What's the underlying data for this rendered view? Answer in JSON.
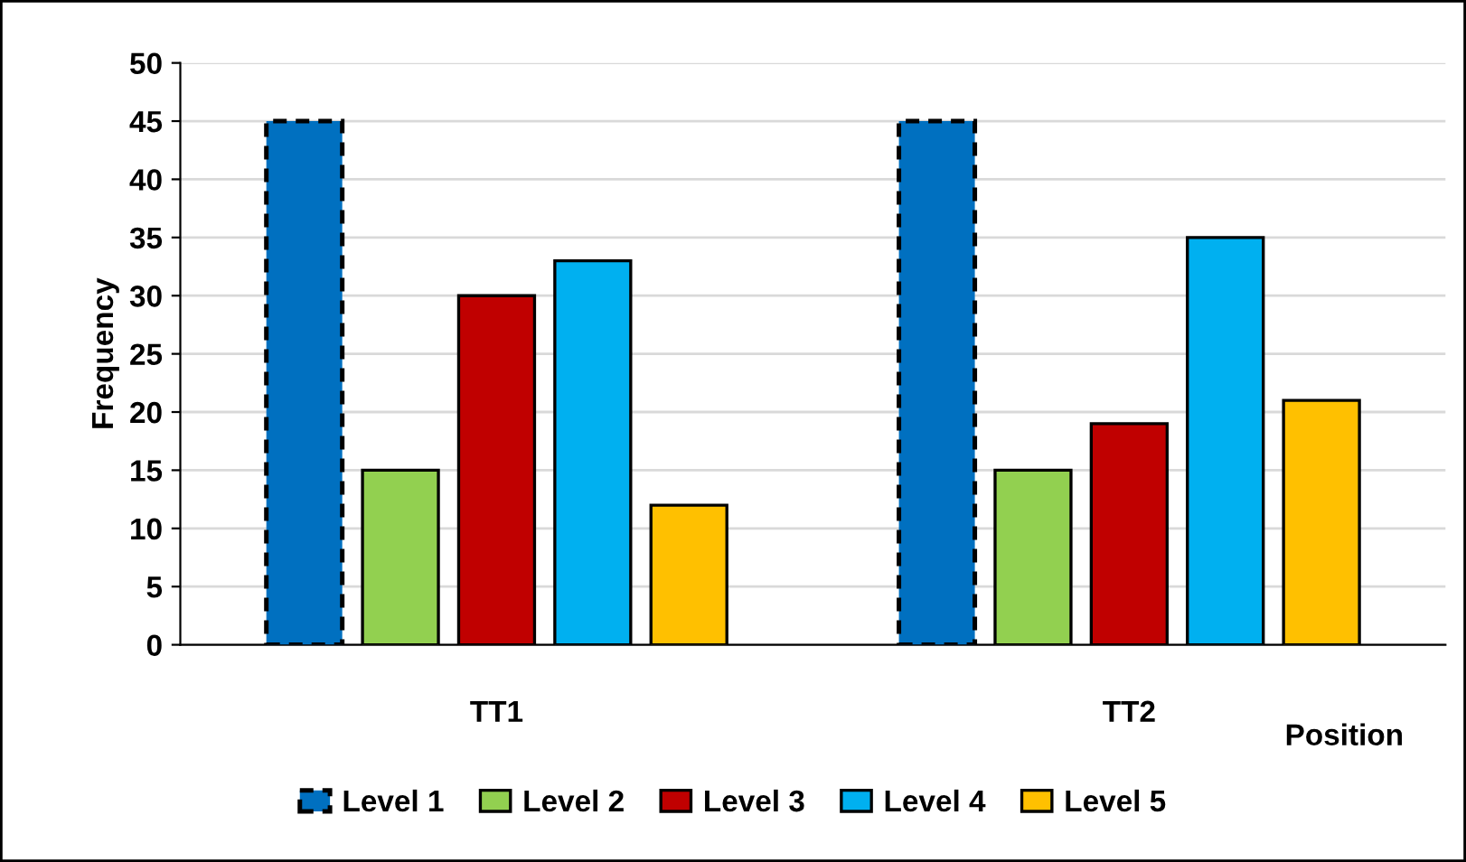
{
  "chart_data": {
    "type": "bar",
    "xlabel": "Position",
    "ylabel": "Frequency",
    "categories": [
      "TT1",
      "TT2"
    ],
    "series": [
      {
        "name": "Level 1",
        "color": "#0070c0",
        "values": [
          45,
          45
        ],
        "line_style": "dashed"
      },
      {
        "name": "Level 2",
        "color": "#92d050",
        "values": [
          15,
          15
        ]
      },
      {
        "name": "Level 3",
        "color": "#c00000",
        "values": [
          30,
          19
        ]
      },
      {
        "name": "Level 4",
        "color": "#00b0f0",
        "values": [
          33,
          35
        ]
      },
      {
        "name": "Level 5",
        "color": "#ffc000",
        "values": [
          12,
          21
        ]
      }
    ],
    "ylim": [
      0,
      50
    ],
    "yticks": [
      0,
      5,
      10,
      15,
      20,
      25,
      30,
      35,
      40,
      45,
      50
    ],
    "grid": "y",
    "legend": "bottom"
  }
}
